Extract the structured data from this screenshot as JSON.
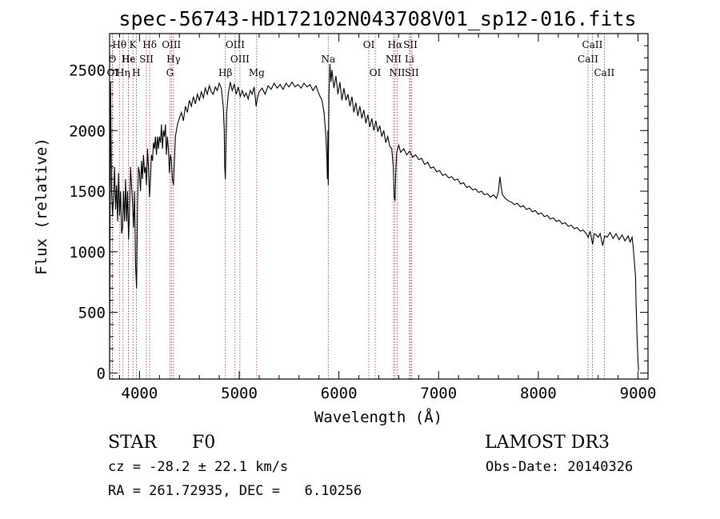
{
  "chart_data": {
    "type": "line",
    "title": "spec-56743-HD172102N043708V01_sp12-016.fits",
    "xlabel": "Wavelength (Å)",
    "ylabel": "Flux (relative)",
    "xlim": [
      3700,
      9100
    ],
    "ylim": [
      -50,
      2800
    ],
    "x_ticks": [
      4000,
      5000,
      6000,
      7000,
      8000,
      9000
    ],
    "y_ticks": [
      0,
      500,
      1000,
      1500,
      2000,
      2500
    ],
    "series": [
      {
        "name": "flux",
        "points": [
          [
            3700,
            40
          ],
          [
            3705,
            1200
          ],
          [
            3710,
            2400
          ],
          [
            3715,
            1900
          ],
          [
            3720,
            1500
          ],
          [
            3730,
            1300
          ],
          [
            3740,
            1450
          ],
          [
            3750,
            1700
          ],
          [
            3760,
            1350
          ],
          [
            3770,
            1550
          ],
          [
            3780,
            1250
          ],
          [
            3790,
            1650
          ],
          [
            3800,
            1300
          ],
          [
            3810,
            1500
          ],
          [
            3820,
            1150
          ],
          [
            3830,
            1200
          ],
          [
            3840,
            1500
          ],
          [
            3850,
            1250
          ],
          [
            3860,
            1600
          ],
          [
            3870,
            1250
          ],
          [
            3880,
            1500
          ],
          [
            3890,
            1100
          ],
          [
            3900,
            1350
          ],
          [
            3910,
            1700
          ],
          [
            3920,
            1550
          ],
          [
            3930,
            1400
          ],
          [
            3940,
            1200
          ],
          [
            3950,
            1500
          ],
          [
            3960,
            900
          ],
          [
            3970,
            700
          ],
          [
            3980,
            1400
          ],
          [
            3990,
            1700
          ],
          [
            4000,
            1650
          ],
          [
            4010,
            1500
          ],
          [
            4020,
            1750
          ],
          [
            4030,
            1600
          ],
          [
            4040,
            1800
          ],
          [
            4050,
            1650
          ],
          [
            4060,
            1700
          ],
          [
            4070,
            1550
          ],
          [
            4080,
            1850
          ],
          [
            4090,
            1700
          ],
          [
            4100,
            1450
          ],
          [
            4110,
            1600
          ],
          [
            4120,
            1800
          ],
          [
            4130,
            1750
          ],
          [
            4140,
            1900
          ],
          [
            4150,
            1850
          ],
          [
            4160,
            1950
          ],
          [
            4170,
            1800
          ],
          [
            4180,
            1950
          ],
          [
            4190,
            1850
          ],
          [
            4200,
            1950
          ],
          [
            4210,
            1900
          ],
          [
            4220,
            2050
          ],
          [
            4230,
            1850
          ],
          [
            4240,
            2000
          ],
          [
            4250,
            1950
          ],
          [
            4260,
            2050
          ],
          [
            4270,
            1800
          ],
          [
            4280,
            1950
          ],
          [
            4290,
            1850
          ],
          [
            4300,
            1650
          ],
          [
            4310,
            1800
          ],
          [
            4320,
            1750
          ],
          [
            4330,
            1600
          ],
          [
            4340,
            1550
          ],
          [
            4350,
            1750
          ],
          [
            4360,
            1950
          ],
          [
            4370,
            2000
          ],
          [
            4380,
            2050
          ],
          [
            4400,
            2100
          ],
          [
            4420,
            2150
          ],
          [
            4440,
            2080
          ],
          [
            4460,
            2200
          ],
          [
            4480,
            2150
          ],
          [
            4500,
            2250
          ],
          [
            4520,
            2200
          ],
          [
            4540,
            2280
          ],
          [
            4560,
            2220
          ],
          [
            4580,
            2300
          ],
          [
            4600,
            2250
          ],
          [
            4620,
            2320
          ],
          [
            4640,
            2270
          ],
          [
            4660,
            2350
          ],
          [
            4680,
            2300
          ],
          [
            4700,
            2370
          ],
          [
            4720,
            2320
          ],
          [
            4740,
            2300
          ],
          [
            4760,
            2360
          ],
          [
            4780,
            2330
          ],
          [
            4800,
            2390
          ],
          [
            4820,
            2350
          ],
          [
            4840,
            2200
          ],
          [
            4850,
            2000
          ],
          [
            4855,
            1700
          ],
          [
            4861,
            1600
          ],
          [
            4867,
            1850
          ],
          [
            4875,
            2150
          ],
          [
            4890,
            2300
          ],
          [
            4910,
            2400
          ],
          [
            4930,
            2330
          ],
          [
            4950,
            2380
          ],
          [
            4970,
            2300
          ],
          [
            4990,
            2360
          ],
          [
            5010,
            2280
          ],
          [
            5030,
            2330
          ],
          [
            5050,
            2280
          ],
          [
            5070,
            2310
          ],
          [
            5090,
            2260
          ],
          [
            5110,
            2330
          ],
          [
            5130,
            2300
          ],
          [
            5150,
            2360
          ],
          [
            5170,
            2200
          ],
          [
            5180,
            2260
          ],
          [
            5200,
            2320
          ],
          [
            5230,
            2350
          ],
          [
            5260,
            2300
          ],
          [
            5290,
            2370
          ],
          [
            5320,
            2340
          ],
          [
            5350,
            2390
          ],
          [
            5380,
            2350
          ],
          [
            5410,
            2380
          ],
          [
            5440,
            2340
          ],
          [
            5470,
            2390
          ],
          [
            5500,
            2360
          ],
          [
            5530,
            2400
          ],
          [
            5560,
            2360
          ],
          [
            5590,
            2380
          ],
          [
            5620,
            2350
          ],
          [
            5650,
            2390
          ],
          [
            5680,
            2360
          ],
          [
            5710,
            2380
          ],
          [
            5740,
            2330
          ],
          [
            5770,
            2370
          ],
          [
            5800,
            2300
          ],
          [
            5830,
            2250
          ],
          [
            5850,
            2150
          ],
          [
            5870,
            1950
          ],
          [
            5880,
            1750
          ],
          [
            5885,
            1600
          ],
          [
            5890,
            2000
          ],
          [
            5893,
            1550
          ],
          [
            5896,
            1900
          ],
          [
            5900,
            2300
          ],
          [
            5910,
            2550
          ],
          [
            5920,
            2400
          ],
          [
            5930,
            2500
          ],
          [
            5950,
            2350
          ],
          [
            5970,
            2450
          ],
          [
            5990,
            2300
          ],
          [
            6010,
            2400
          ],
          [
            6030,
            2250
          ],
          [
            6050,
            2350
          ],
          [
            6070,
            2250
          ],
          [
            6090,
            2300
          ],
          [
            6110,
            2200
          ],
          [
            6130,
            2280
          ],
          [
            6150,
            2150
          ],
          [
            6170,
            2230
          ],
          [
            6190,
            2120
          ],
          [
            6210,
            2200
          ],
          [
            6230,
            2100
          ],
          [
            6250,
            2170
          ],
          [
            6270,
            2060
          ],
          [
            6290,
            2130
          ],
          [
            6310,
            2030
          ],
          [
            6330,
            2100
          ],
          [
            6350,
            2000
          ],
          [
            6370,
            2080
          ],
          [
            6390,
            1990
          ],
          [
            6410,
            2040
          ],
          [
            6430,
            1950
          ],
          [
            6450,
            2000
          ],
          [
            6470,
            1900
          ],
          [
            6490,
            1950
          ],
          [
            6510,
            1870
          ],
          [
            6530,
            1850
          ],
          [
            6545,
            1700
          ],
          [
            6555,
            1450
          ],
          [
            6563,
            1420
          ],
          [
            6570,
            1650
          ],
          [
            6580,
            1820
          ],
          [
            6600,
            1880
          ],
          [
            6620,
            1820
          ],
          [
            6650,
            1850
          ],
          [
            6680,
            1800
          ],
          [
            6710,
            1830
          ],
          [
            6740,
            1780
          ],
          [
            6770,
            1800
          ],
          [
            6800,
            1760
          ],
          [
            6830,
            1770
          ],
          [
            6860,
            1720
          ],
          [
            6890,
            1740
          ],
          [
            6920,
            1690
          ],
          [
            6950,
            1700
          ],
          [
            6980,
            1660
          ],
          [
            7010,
            1670
          ],
          [
            7040,
            1630
          ],
          [
            7070,
            1640
          ],
          [
            7100,
            1610
          ],
          [
            7130,
            1620
          ],
          [
            7160,
            1590
          ],
          [
            7190,
            1600
          ],
          [
            7220,
            1560
          ],
          [
            7250,
            1570
          ],
          [
            7280,
            1530
          ],
          [
            7310,
            1540
          ],
          [
            7340,
            1510
          ],
          [
            7370,
            1520
          ],
          [
            7400,
            1490
          ],
          [
            7430,
            1500
          ],
          [
            7460,
            1470
          ],
          [
            7490,
            1480
          ],
          [
            7520,
            1450
          ],
          [
            7550,
            1470
          ],
          [
            7580,
            1440
          ],
          [
            7600,
            1500
          ],
          [
            7615,
            1620
          ],
          [
            7625,
            1550
          ],
          [
            7640,
            1470
          ],
          [
            7670,
            1440
          ],
          [
            7700,
            1420
          ],
          [
            7730,
            1410
          ],
          [
            7760,
            1390
          ],
          [
            7790,
            1400
          ],
          [
            7820,
            1370
          ],
          [
            7850,
            1380
          ],
          [
            7880,
            1350
          ],
          [
            7910,
            1360
          ],
          [
            7940,
            1330
          ],
          [
            7970,
            1340
          ],
          [
            8000,
            1310
          ],
          [
            8030,
            1320
          ],
          [
            8060,
            1290
          ],
          [
            8090,
            1300
          ],
          [
            8120,
            1270
          ],
          [
            8150,
            1280
          ],
          [
            8180,
            1250
          ],
          [
            8210,
            1260
          ],
          [
            8240,
            1230
          ],
          [
            8270,
            1240
          ],
          [
            8300,
            1210
          ],
          [
            8330,
            1220
          ],
          [
            8360,
            1190
          ],
          [
            8390,
            1200
          ],
          [
            8420,
            1170
          ],
          [
            8450,
            1180
          ],
          [
            8480,
            1150
          ],
          [
            8500,
            1120
          ],
          [
            8520,
            1170
          ],
          [
            8545,
            1060
          ],
          [
            8560,
            1150
          ],
          [
            8580,
            1140
          ],
          [
            8600,
            1120
          ],
          [
            8620,
            1150
          ],
          [
            8645,
            1050
          ],
          [
            8665,
            1130
          ],
          [
            8690,
            1120
          ],
          [
            8720,
            1160
          ],
          [
            8750,
            1110
          ],
          [
            8780,
            1150
          ],
          [
            8810,
            1100
          ],
          [
            8840,
            1140
          ],
          [
            8870,
            1090
          ],
          [
            8900,
            1130
          ],
          [
            8920,
            1080
          ],
          [
            8940,
            1120
          ],
          [
            8950,
            1050
          ],
          [
            8960,
            950
          ],
          [
            8970,
            850
          ],
          [
            8975,
            800
          ],
          [
            8980,
            600
          ],
          [
            8990,
            300
          ],
          [
            9000,
            100
          ],
          [
            9005,
            20
          ]
        ]
      }
    ],
    "spectral_lines": [
      {
        "label": "Hθ",
        "wl": 3798,
        "row": 0
      },
      {
        "label": "Hη",
        "wl": 3835,
        "row": 2
      },
      {
        "label": "O",
        "wl": 3727,
        "row": 1
      },
      {
        "label": "OI",
        "wl": 3730,
        "row": 2
      },
      {
        "label": "Hε",
        "wl": 3889,
        "row": 1
      },
      {
        "label": "He",
        "wl": 3889,
        "row": 1
      },
      {
        "label": "K",
        "wl": 3934,
        "row": 0
      },
      {
        "label": "H",
        "wl": 3968,
        "row": 2
      },
      {
        "label": "SII",
        "wl": 4069,
        "row": 1
      },
      {
        "label": "Hδ",
        "wl": 4102,
        "row": 0
      },
      {
        "label": "OIII",
        "wl": 4320,
        "row": 0
      },
      {
        "label": "Hγ",
        "wl": 4341,
        "row": 1
      },
      {
        "label": "G",
        "wl": 4305,
        "row": 2
      },
      {
        "label": "Hβ",
        "wl": 4861,
        "row": 2
      },
      {
        "label": "OIII",
        "wl": 4959,
        "row": 0
      },
      {
        "label": "OIII",
        "wl": 5007,
        "row": 1
      },
      {
        "label": "Mg",
        "wl": 5175,
        "row": 2
      },
      {
        "label": "Na",
        "wl": 5893,
        "row": 1
      },
      {
        "label": "OI",
        "wl": 6300,
        "row": 0
      },
      {
        "label": "OI",
        "wl": 6364,
        "row": 2
      },
      {
        "label": "Hα",
        "wl": 6563,
        "row": 0
      },
      {
        "label": "NII",
        "wl": 6548,
        "row": 1
      },
      {
        "label": "NII",
        "wl": 6584,
        "row": 2
      },
      {
        "label": "SII",
        "wl": 6717,
        "row": 0
      },
      {
        "label": "Li",
        "wl": 6708,
        "row": 1
      },
      {
        "label": "SII",
        "wl": 6731,
        "row": 2
      },
      {
        "label": "CaII",
        "wl": 8498,
        "row": 1
      },
      {
        "label": "CaII",
        "wl": 8542,
        "row": 0
      },
      {
        "label": "CaII",
        "wl": 8662,
        "row": 2
      }
    ]
  },
  "info": {
    "class": "STAR",
    "subclass": "F0",
    "survey": "LAMOST DR3",
    "cz": "cz = -28.2 ± 22.1 km/s",
    "obs_date": "Obs-Date: 20140326",
    "radec": "RA = 261.72935, DEC =   6.10256"
  }
}
